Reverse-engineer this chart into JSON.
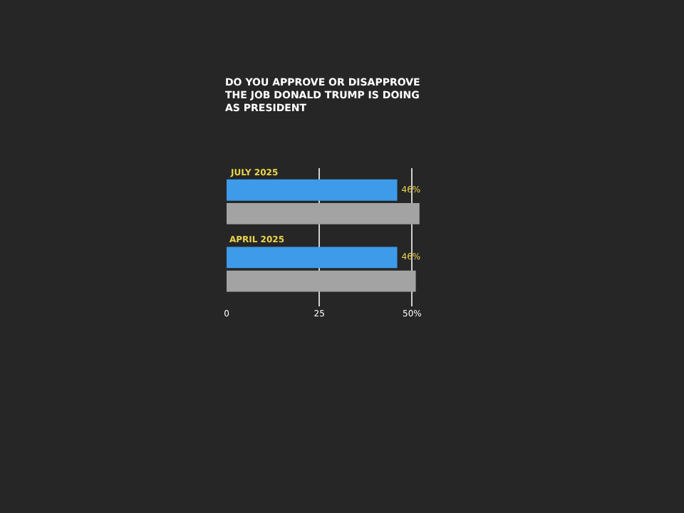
{
  "chart_data": {
    "type": "bar",
    "orientation": "horizontal",
    "title": "DO YOU APPROVE OR DISAPPROVE THE JOB DONALD TRUMP IS DOING AS PRESIDENT",
    "categories": [
      "JULY 2025",
      "APRIL 2025"
    ],
    "series": [
      {
        "color": "#3d9be9",
        "values": [
          46,
          46
        ],
        "value_labels": [
          "46%",
          "46%"
        ]
      },
      {
        "color": "#a3a3a3",
        "values": [
          52,
          51
        ],
        "value_labels": [
          null,
          null
        ]
      }
    ],
    "xlim": [
      0,
      53
    ],
    "xticks": [
      0,
      25,
      {
        "value": 50,
        "label": "50%"
      }
    ],
    "grid": "x",
    "tick_labels": "x"
  }
}
